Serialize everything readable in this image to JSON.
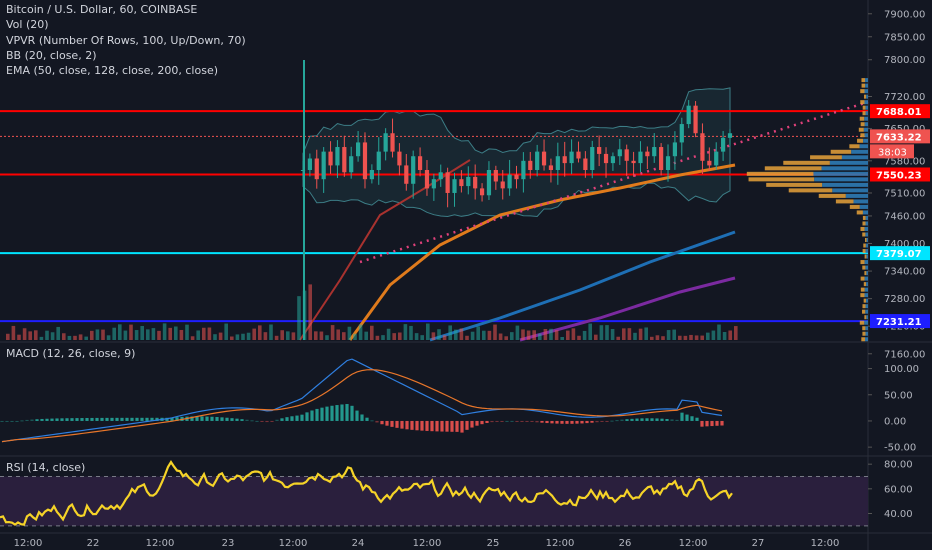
{
  "legend": {
    "symbol": "Bitcoin / U.S. Dollar, 60, COINBASE",
    "vol": "Vol (20)",
    "vpvr": "VPVR (Number Of Rows, 100, Up/Down, 70)",
    "bb": "BB (20, close, 2)",
    "ema": "EMA (50, close, 128, close, 200, close)"
  },
  "macd_title": "MACD (12, 26, close, 9)",
  "rsi_title": "RSI (14, close)",
  "colors": {
    "background": "#131722",
    "up": "#26a69a",
    "down": "#ef5350",
    "red_level": "#ff0000",
    "cyan_level": "#00e5ff",
    "blue_level": "#1e1eff",
    "ema50": "#e07b1c",
    "ema128": "#1e6fb5",
    "ema200": "#7b2aa0",
    "trend": "#e0417a",
    "macd_line": "#2f7fe0",
    "signal_line": "#e8762a",
    "rsi_line": "#f5d328",
    "rsi_band": "#2a1f3d",
    "vpvr_up": "#e8a23a",
    "vpvr_down": "#2f7bb5"
  },
  "chart_data": [
    {
      "type": "candlestick",
      "title": "Bitcoin / U.S. Dollar, 60, COINBASE",
      "ylim": [
        7190,
        7930
      ],
      "y_ticks": [
        7900,
        7850,
        7800,
        7720,
        7650,
        7580,
        7510,
        7460,
        7400,
        7340,
        7280,
        7220,
        7160
      ],
      "y_tick_labels": [
        "7900.00",
        "7850.00",
        "7800.00",
        "7720.00",
        "7650.00",
        "7580.00",
        "7510.00",
        "7460.00",
        "7400.00",
        "7340.00",
        "7280.00",
        "7220.00",
        "7160.00"
      ],
      "x_tick_labels": [
        "12:00",
        "22",
        "12:00",
        "23",
        "12:00",
        "24",
        "12:00",
        "25",
        "12:00",
        "26",
        "12:00",
        "27",
        "12:00"
      ],
      "levels": [
        {
          "label": "7688.01",
          "value": 7688.01,
          "color": "#ff0000"
        },
        {
          "label": "7633.22",
          "value": 7633.22,
          "color": "#ef5350"
        },
        {
          "label": "7550.23",
          "value": 7550.23,
          "color": "#ff0000"
        },
        {
          "label": "7379.07",
          "value": 7379.07,
          "color": "#00e5ff"
        },
        {
          "label": "7231.21",
          "value": 7231.21,
          "color": "#1e1eff"
        }
      ],
      "countdown": "38:03",
      "price_walk": [
        7560,
        7585,
        7540,
        7600,
        7570,
        7610,
        7555,
        7590,
        7620,
        7540,
        7560,
        7600,
        7640,
        7600,
        7570,
        7530,
        7590,
        7560,
        7520,
        7540,
        7555,
        7510,
        7540,
        7525,
        7545,
        7520,
        7505,
        7560,
        7535,
        7520,
        7550,
        7540,
        7580,
        7560,
        7600,
        7570,
        7560,
        7590,
        7575,
        7600,
        7585,
        7560,
        7610,
        7595,
        7575,
        7590,
        7605,
        7580,
        7575,
        7600,
        7590,
        7610,
        7560,
        7590,
        7620,
        7660,
        7700,
        7640,
        7580,
        7570,
        7600,
        7630,
        7640
      ]
    },
    {
      "type": "line",
      "title": "MACD (12, 26, close, 9)",
      "ylim": [
        -65,
        145
      ],
      "y_ticks": [
        100,
        50,
        0,
        -50
      ],
      "y_tick_labels": [
        "100.00",
        "50.00",
        "0.00",
        "-50.00"
      ]
    },
    {
      "type": "line",
      "title": "RSI (14, close)",
      "ylim": [
        25,
        85
      ],
      "y_ticks": [
        80,
        60,
        40
      ],
      "y_tick_labels": [
        "80.00",
        "60.00",
        "40.00"
      ],
      "band": [
        30,
        70
      ]
    }
  ]
}
